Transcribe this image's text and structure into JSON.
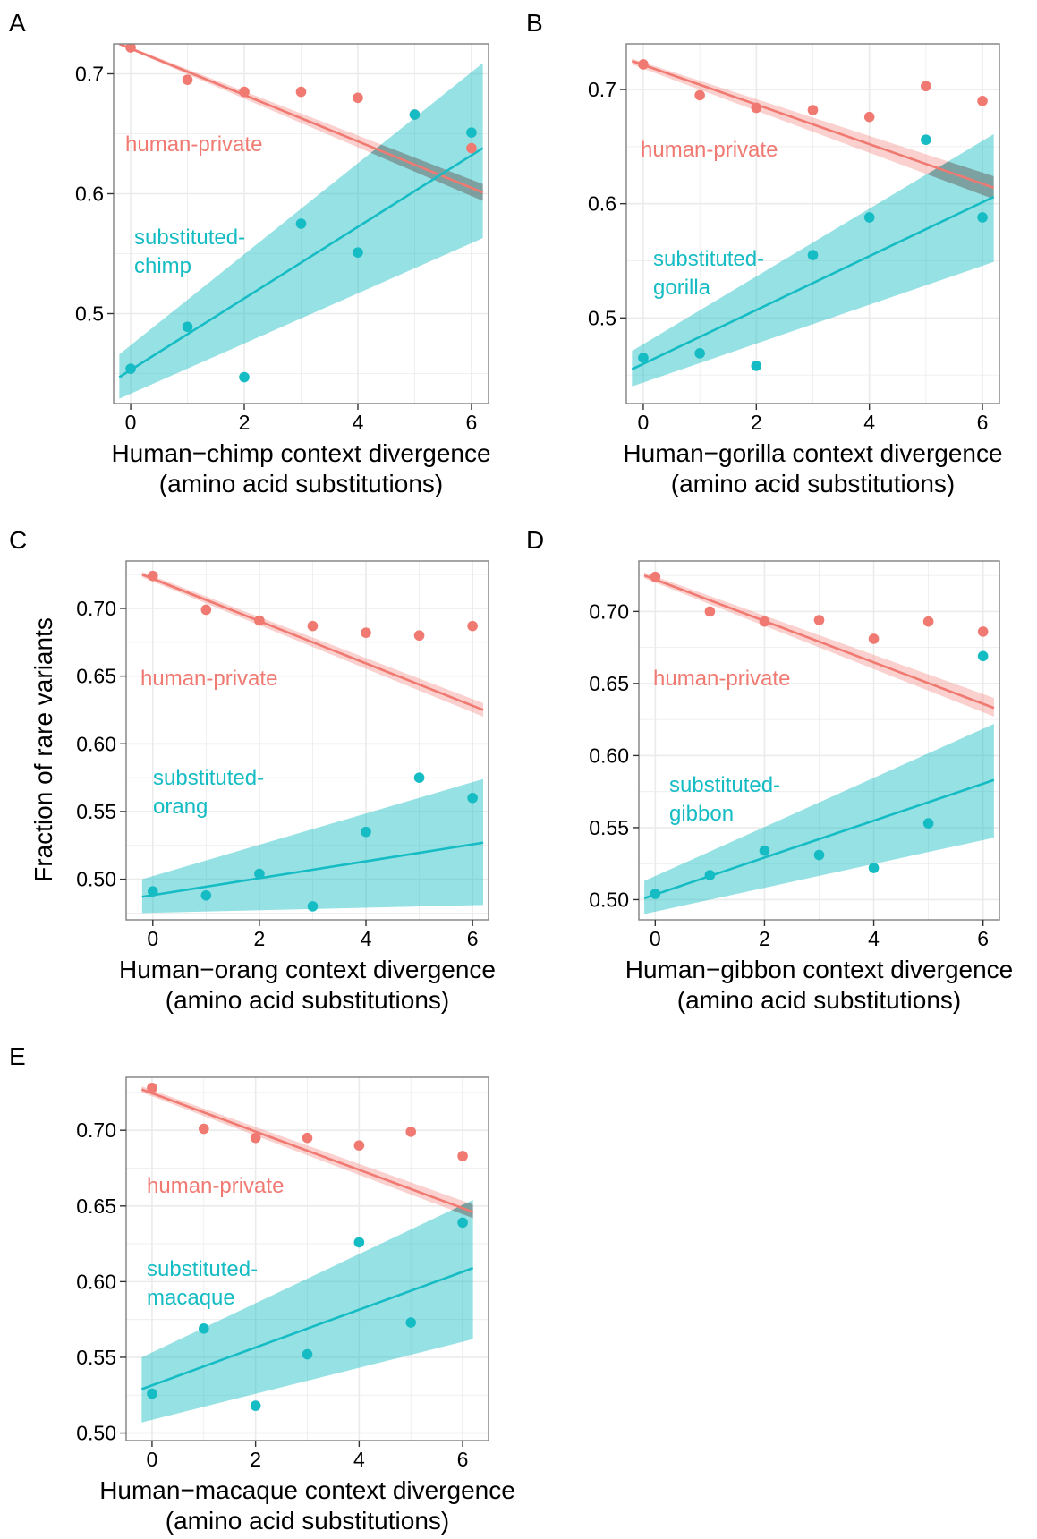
{
  "figure": {
    "ylabel": "Fraction of rare variants",
    "colors": {
      "human_private": "#F07A72",
      "substituted": "#16BCC4",
      "grid": "#EBEBEB",
      "panel_border": "#7F7F7F"
    }
  },
  "chart_data": [
    {
      "panel": "A",
      "type": "scatter",
      "xlabel": [
        "Human−chimp context divergence",
        "(amino acid substitutions)"
      ],
      "xticks": [
        "0",
        "2",
        "4",
        "6"
      ],
      "yticks": [
        "0.5",
        "0.6",
        "0.7"
      ],
      "xlim": [
        -0.3,
        6.3
      ],
      "ylim": [
        0.425,
        0.725
      ],
      "series": [
        {
          "name": "human-private",
          "color": "#F07A72",
          "label": [
            "human-private"
          ],
          "x": [
            0,
            1,
            2,
            3,
            4,
            5,
            6
          ],
          "y": [
            0.722,
            0.695,
            0.685,
            0.685,
            0.68,
            0.666,
            0.638
          ],
          "fit": {
            "x0": -0.2,
            "y0": 0.725,
            "x1": 6.2,
            "y1": 0.601
          },
          "band": {
            "lo0": 0.724,
            "hi0": 0.726,
            "lo1": 0.594,
            "hi1": 0.608
          }
        },
        {
          "name": "substituted-chimp",
          "color": "#16BCC4",
          "label": [
            "substituted-",
            "chimp"
          ],
          "x": [
            0,
            1,
            2,
            3,
            4,
            5,
            6
          ],
          "y": [
            0.454,
            0.489,
            0.447,
            0.575,
            0.551,
            0.666,
            0.651
          ],
          "fit": {
            "x0": -0.2,
            "y0": 0.447,
            "x1": 6.2,
            "y1": 0.638
          },
          "band": {
            "lo0": 0.429,
            "hi0": 0.466,
            "lo1": 0.563,
            "hi1": 0.709
          }
        }
      ]
    },
    {
      "panel": "B",
      "type": "scatter",
      "xlabel": [
        "Human−gorilla context divergence",
        "(amino acid substitutions)"
      ],
      "xticks": [
        "0",
        "2",
        "4",
        "6"
      ],
      "yticks": [
        "0.5",
        "0.6",
        "0.7"
      ],
      "xlim": [
        -0.3,
        6.3
      ],
      "ylim": [
        0.425,
        0.74
      ],
      "series": [
        {
          "name": "human-private",
          "color": "#F07A72",
          "label": [
            "human-private"
          ],
          "x": [
            0,
            1,
            2,
            3,
            4,
            5,
            6
          ],
          "y": [
            0.722,
            0.695,
            0.684,
            0.682,
            0.676,
            0.703,
            0.69
          ],
          "fit": {
            "x0": -0.2,
            "y0": 0.725,
            "x1": 6.2,
            "y1": 0.614
          },
          "band": {
            "lo0": 0.722,
            "hi0": 0.727,
            "lo1": 0.604,
            "hi1": 0.624
          }
        },
        {
          "name": "substituted-gorilla",
          "color": "#16BCC4",
          "label": [
            "substituted-",
            "gorilla"
          ],
          "x": [
            0,
            1,
            2,
            3,
            4,
            5,
            6
          ],
          "y": [
            0.465,
            0.469,
            0.458,
            0.555,
            0.588,
            0.656,
            0.588
          ],
          "fit": {
            "x0": -0.2,
            "y0": 0.455,
            "x1": 6.2,
            "y1": 0.606
          },
          "band": {
            "lo0": 0.44,
            "hi0": 0.471,
            "lo1": 0.549,
            "hi1": 0.661
          }
        }
      ]
    },
    {
      "panel": "C",
      "type": "scatter",
      "xlabel": [
        "Human−orang context divergence",
        "(amino acid substitutions)"
      ],
      "xticks": [
        "0",
        "2",
        "4",
        "6"
      ],
      "yticks": [
        "0.50",
        "0.55",
        "0.60",
        "0.65",
        "0.70"
      ],
      "xlim": [
        -0.5,
        6.3
      ],
      "ylim": [
        0.47,
        0.735
      ],
      "series": [
        {
          "name": "human-private",
          "color": "#F07A72",
          "label": [
            "human-private"
          ],
          "x": [
            0,
            1,
            2,
            3,
            4,
            5,
            6
          ],
          "y": [
            0.724,
            0.699,
            0.691,
            0.687,
            0.682,
            0.68,
            0.687
          ],
          "fit": {
            "x0": -0.2,
            "y0": 0.725,
            "x1": 6.2,
            "y1": 0.625
          },
          "band": {
            "lo0": 0.723,
            "hi0": 0.727,
            "lo1": 0.62,
            "hi1": 0.63
          }
        },
        {
          "name": "substituted-orang",
          "color": "#16BCC4",
          "label": [
            "substituted-",
            "orang"
          ],
          "x": [
            0,
            1,
            2,
            3,
            4,
            5,
            6
          ],
          "y": [
            0.491,
            0.488,
            0.504,
            0.48,
            0.535,
            0.575,
            0.56
          ],
          "fit": {
            "x0": -0.2,
            "y0": 0.487,
            "x1": 6.2,
            "y1": 0.527
          },
          "band": {
            "lo0": 0.475,
            "hi0": 0.5,
            "lo1": 0.481,
            "hi1": 0.574
          }
        }
      ]
    },
    {
      "panel": "D",
      "type": "scatter",
      "xlabel": [
        "Human−gibbon context divergence",
        "(amino acid substitutions)"
      ],
      "xticks": [
        "0",
        "2",
        "4",
        "6"
      ],
      "yticks": [
        "0.50",
        "0.55",
        "0.60",
        "0.65",
        "0.70"
      ],
      "xlim": [
        -0.3,
        6.3
      ],
      "ylim": [
        0.486,
        0.735
      ],
      "series": [
        {
          "name": "human-private",
          "color": "#F07A72",
          "label": [
            "human-private"
          ],
          "x": [
            0,
            1,
            2,
            3,
            4,
            5,
            6
          ],
          "y": [
            0.724,
            0.7,
            0.693,
            0.694,
            0.681,
            0.693,
            0.686
          ],
          "fit": {
            "x0": -0.2,
            "y0": 0.725,
            "x1": 6.2,
            "y1": 0.633
          },
          "band": {
            "lo0": 0.723,
            "hi0": 0.727,
            "lo1": 0.627,
            "hi1": 0.64
          }
        },
        {
          "name": "substituted-gibbon",
          "color": "#16BCC4",
          "label": [
            "substituted-",
            "gibbon"
          ],
          "x": [
            0,
            1,
            2,
            3,
            4,
            5,
            6
          ],
          "y": [
            0.504,
            0.517,
            0.534,
            0.531,
            0.522,
            0.553,
            0.669
          ],
          "fit": {
            "x0": -0.2,
            "y0": 0.501,
            "x1": 6.2,
            "y1": 0.583
          },
          "band": {
            "lo0": 0.49,
            "hi0": 0.513,
            "lo1": 0.543,
            "hi1": 0.622
          }
        }
      ]
    },
    {
      "panel": "E",
      "type": "scatter",
      "xlabel": [
        "Human−macaque context divergence",
        "(amino acid substitutions)"
      ],
      "xticks": [
        "0",
        "2",
        "4",
        "6"
      ],
      "yticks": [
        "0.50",
        "0.55",
        "0.60",
        "0.65",
        "0.70"
      ],
      "xlim": [
        -0.5,
        6.5
      ],
      "ylim": [
        0.495,
        0.735
      ],
      "series": [
        {
          "name": "human-private",
          "color": "#F07A72",
          "label": [
            "human-private"
          ],
          "x": [
            0,
            1,
            2,
            3,
            4,
            5,
            6
          ],
          "y": [
            0.728,
            0.701,
            0.695,
            0.695,
            0.69,
            0.699,
            0.683
          ],
          "fit": {
            "x0": -0.2,
            "y0": 0.727,
            "x1": 6.2,
            "y1": 0.646
          },
          "band": {
            "lo0": 0.725,
            "hi0": 0.729,
            "lo1": 0.642,
            "hi1": 0.651
          }
        },
        {
          "name": "substituted-macaque",
          "color": "#16BCC4",
          "label": [
            "substituted-",
            "macaque"
          ],
          "x": [
            0,
            1,
            2,
            3,
            4,
            5,
            6
          ],
          "y": [
            0.526,
            0.569,
            0.518,
            0.552,
            0.626,
            0.573,
            0.639
          ],
          "fit": {
            "x0": -0.2,
            "y0": 0.529,
            "x1": 6.2,
            "y1": 0.609
          },
          "band": {
            "lo0": 0.507,
            "hi0": 0.55,
            "lo1": 0.562,
            "hi1": 0.654
          }
        }
      ]
    }
  ]
}
